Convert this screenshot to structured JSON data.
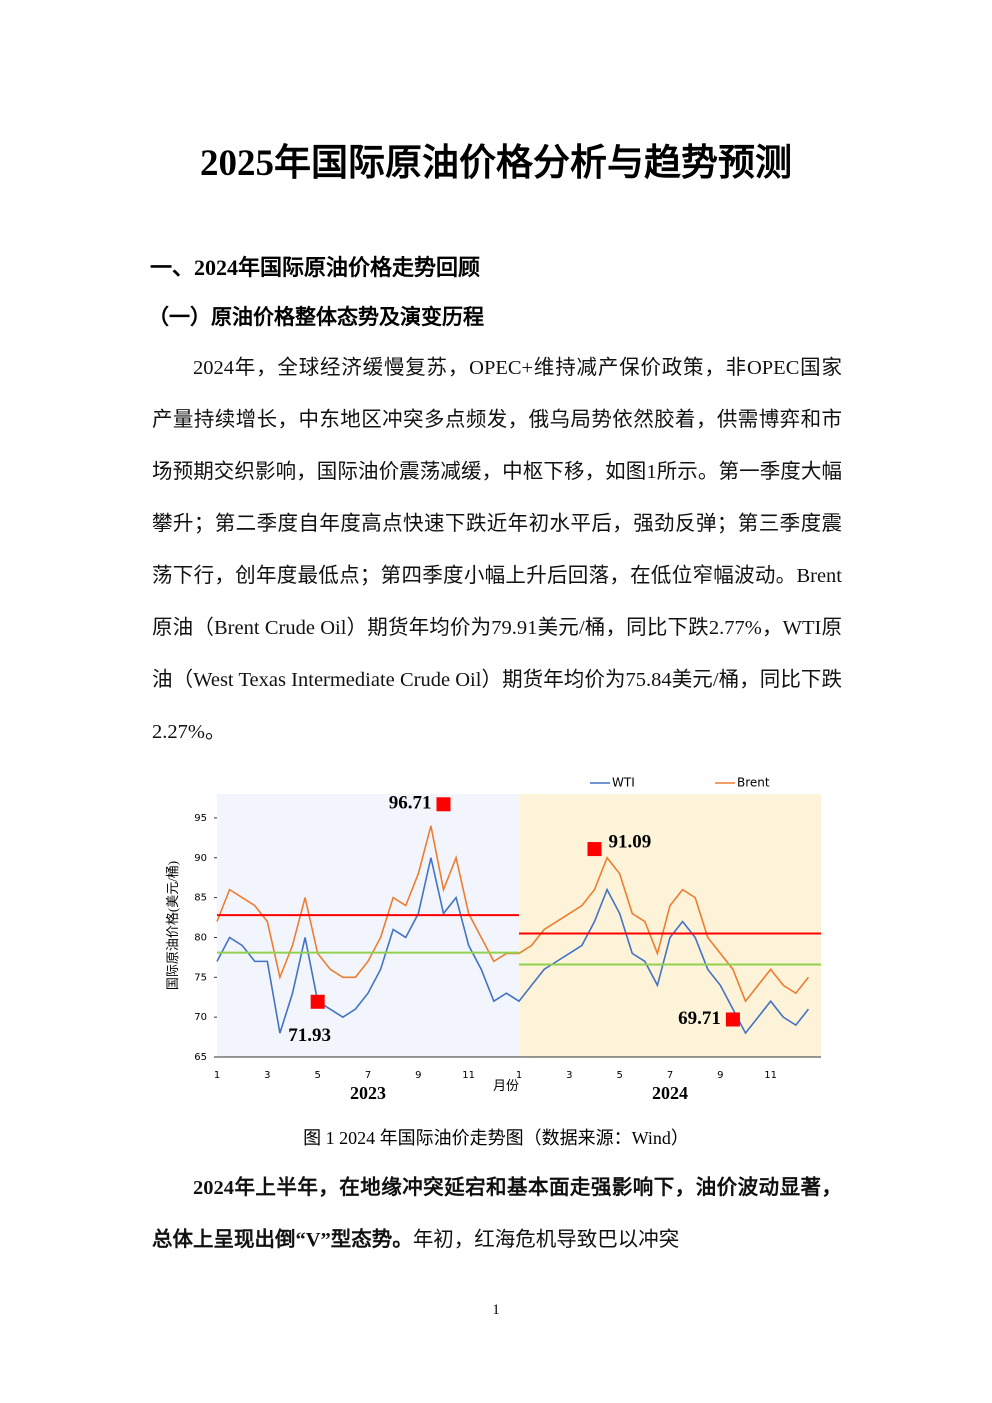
{
  "title": "2025年国际原油价格分析与趋势预测",
  "heading1": "一、2024年国际原油价格走势回顾",
  "heading2": "（一）原油价格整体态势及演变历程",
  "paragraph1": "2024年，全球经济缓慢复苏，OPEC+维持减产保价政策，非OPEC国家产量持续增长，中东地区冲突多点频发，俄乌局势依然胶着，供需博弈和市场预期交织影响，国际油价震荡减缓，中枢下移，如图1所示。第一季度大幅攀升；第二季度自年度高点快速下跌近年初水平后，强劲反弹；第三季度震荡下行，创年度最低点；第四季度小幅上升后回落，在低位窄幅波动。Brent原油（Brent Crude Oil）期货年均价为79.91美元/桶，同比下跌2.77%，WTI原油（West Texas Intermediate Crude Oil）期货年均价为75.84美元/桶，同比下跌2.27%。",
  "chart_data": {
    "type": "line",
    "y_label": "国际原油价格(美元/桶)",
    "x_label": "月份",
    "years": [
      "2023",
      "2024"
    ],
    "categories": [
      "1",
      null,
      null,
      null,
      "3",
      null,
      null,
      null,
      "5",
      null,
      null,
      null,
      "7",
      null,
      null,
      null,
      "9",
      null,
      null,
      null,
      "11",
      null,
      null,
      null,
      "1",
      null,
      null,
      null,
      "3",
      null,
      null,
      null,
      "5",
      null,
      null,
      null,
      "7",
      null,
      null,
      null,
      "9",
      null,
      null,
      null,
      "11",
      null,
      null,
      null
    ],
    "series": [
      {
        "name": "WTI",
        "color": "#4472c4",
        "values": [
          77,
          80,
          79,
          77,
          77,
          68,
          73,
          80,
          72,
          71,
          70,
          71,
          73,
          76,
          81,
          80,
          83,
          90,
          83,
          85,
          79,
          76,
          72,
          73,
          72,
          74,
          76,
          77,
          78,
          79,
          82,
          86,
          83,
          78,
          77,
          74,
          80,
          82,
          80,
          76,
          74,
          71,
          68,
          70,
          72,
          70,
          69,
          71
        ]
      },
      {
        "name": "Brent",
        "color": "#ed7d31",
        "values": [
          82,
          86,
          85,
          84,
          82,
          75,
          79,
          85,
          78,
          76,
          75,
          75,
          77,
          80,
          85,
          84,
          88,
          94,
          86,
          90,
          83,
          80,
          77,
          78,
          78,
          79,
          81,
          82,
          83,
          84,
          86,
          90,
          88,
          83,
          82,
          78,
          84,
          86,
          85,
          80,
          78,
          76,
          72,
          74,
          76,
          74,
          73,
          75
        ]
      }
    ],
    "reference_lines": [
      {
        "color": "#ff0000",
        "values": [
          82.8,
          80.5
        ]
      },
      {
        "color": "#92d050",
        "values": [
          78.1,
          76.6
        ]
      }
    ],
    "annotations": [
      {
        "value": 96.71,
        "index": 18,
        "side": "left"
      },
      {
        "value": 71.93,
        "index": 8,
        "side": "below"
      },
      {
        "value": 91.09,
        "index": 30,
        "side": "right"
      },
      {
        "value": 69.71,
        "index": 41,
        "side": "left"
      }
    ],
    "ylim": [
      65,
      98
    ],
    "yticks": [
      65,
      70,
      75,
      80,
      85,
      90,
      95
    ]
  },
  "caption": "图 1 2024 年国际油价走势图（数据来源：Wind）",
  "paragraph2_bold": "2024年上半年，在地缘冲突延宕和基本面走强影响下，油价波动显著，总体上呈现出倒“V”型态势。",
  "paragraph2_rest": "年初，红海危机导致巴以冲突",
  "page_number": "1"
}
